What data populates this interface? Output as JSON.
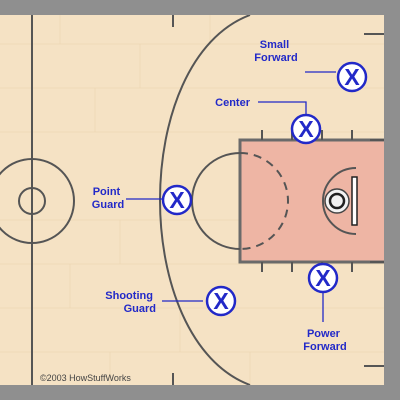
{
  "diagram": {
    "players": [
      {
        "id": "small-forward",
        "label_lines": [
          "Small",
          "Forward"
        ],
        "marker": "X"
      },
      {
        "id": "center",
        "label_lines": [
          "Center"
        ],
        "marker": "X"
      },
      {
        "id": "point-guard",
        "label_lines": [
          "Point",
          "Guard"
        ],
        "marker": "X"
      },
      {
        "id": "shooting-guard",
        "label_lines": [
          "Shooting",
          "Guard"
        ],
        "marker": "X"
      },
      {
        "id": "power-forward",
        "label_lines": [
          "Power",
          "Forward"
        ],
        "marker": "X"
      }
    ],
    "credit": "©2003 HowStuffWorks"
  },
  "colors": {
    "frame": "#8f8f8f",
    "floor": "#f5e2c4",
    "floor_grain": "#ead3ad",
    "court_lines": "#555555",
    "paint": "#eeb5a4",
    "paint_border": "#6a6a6a",
    "marker": "#2229c8",
    "marker_fill": "#ffffff",
    "label": "#2229c8",
    "credit": "#444444"
  }
}
